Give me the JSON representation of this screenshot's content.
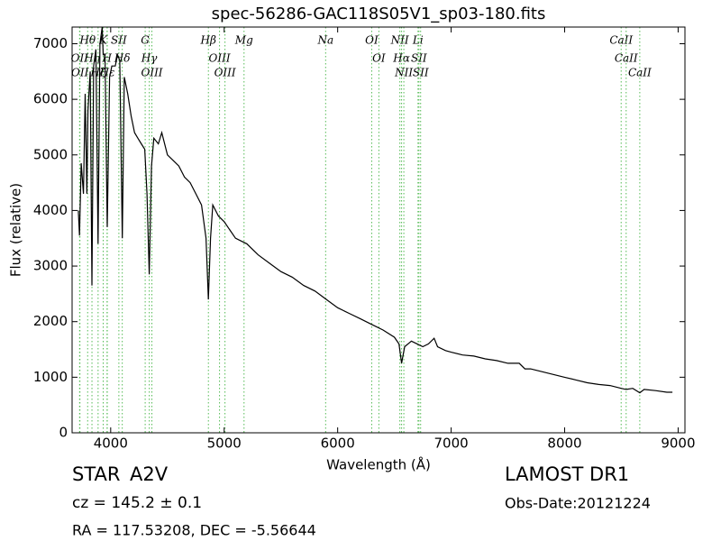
{
  "chart_data": {
    "type": "line",
    "title": "spec-56286-GAC118S05V1_sp03-180.fits",
    "x_label": "Wavelength (Å)",
    "y_label": "Flux (relative)",
    "xlim": [
      3660,
      9060
    ],
    "ylim": [
      0,
      7300
    ],
    "xticks": [
      4000,
      5000,
      6000,
      7000,
      8000,
      9000
    ],
    "yticks": [
      0,
      1000,
      2000,
      3000,
      4000,
      5000,
      6000,
      7000
    ],
    "color": "#000000",
    "line_color": "#55bb55",
    "x": [
      3715,
      3725,
      3740,
      3760,
      3775,
      3790,
      3800,
      3820,
      3835,
      3850,
      3870,
      3889,
      3905,
      3925,
      3934,
      3950,
      3970,
      3990,
      4010,
      4040,
      4060,
      4080,
      4102,
      4120,
      4150,
      4180,
      4210,
      4240,
      4270,
      4300,
      4320,
      4340,
      4360,
      4380,
      4420,
      4450,
      4500,
      4550,
      4600,
      4650,
      4700,
      4750,
      4800,
      4840,
      4861,
      4880,
      4900,
      4950,
      5000,
      5050,
      5100,
      5150,
      5200,
      5300,
      5400,
      5500,
      5600,
      5700,
      5800,
      5900,
      6000,
      6100,
      6200,
      6300,
      6400,
      6500,
      6540,
      6563,
      6590,
      6650,
      6700,
      6750,
      6800,
      6850,
      6880,
      6950,
      7000,
      7100,
      7200,
      7300,
      7400,
      7500,
      7600,
      7650,
      7700,
      7800,
      7900,
      8000,
      8100,
      8200,
      8300,
      8400,
      8498,
      8542,
      8600,
      8662,
      8700,
      8800,
      8900,
      8950
    ],
    "values": [
      4000,
      3550,
      4850,
      4300,
      6100,
      4300,
      5800,
      6500,
      2650,
      6600,
      6900,
      3400,
      7000,
      7300,
      6800,
      6800,
      3700,
      6400,
      6600,
      6600,
      6800,
      6700,
      3500,
      6400,
      6100,
      5700,
      5400,
      5300,
      5200,
      5100,
      4300,
      2850,
      4800,
      5300,
      5200,
      5400,
      5000,
      4900,
      4800,
      4600,
      4500,
      4300,
      4100,
      3500,
      2400,
      3500,
      4100,
      3900,
      3800,
      3650,
      3500,
      3450,
      3400,
      3200,
      3050,
      2900,
      2800,
      2650,
      2550,
      2400,
      2250,
      2150,
      2050,
      1950,
      1850,
      1720,
      1600,
      1250,
      1550,
      1650,
      1600,
      1550,
      1600,
      1700,
      1550,
      1480,
      1450,
      1400,
      1380,
      1330,
      1300,
      1250,
      1250,
      1150,
      1150,
      1100,
      1050,
      1000,
      950,
      900,
      870,
      850,
      800,
      780,
      800,
      720,
      780,
      760,
      730,
      730
    ],
    "lines": [
      {
        "label": "Hθ",
        "wavelength": 3797
      },
      {
        "label": "OII",
        "wavelength": 3726
      },
      {
        "label": "OII",
        "wavelength": 3729
      },
      {
        "label": "Hη",
        "wavelength": 3835
      },
      {
        "label": "Hζ",
        "wavelength": 3889
      },
      {
        "label": "K",
        "wavelength": 3934
      },
      {
        "label": "H",
        "wavelength": 3968
      },
      {
        "label": "Hε",
        "wavelength": 3970
      },
      {
        "label": "SII",
        "wavelength": 4072
      },
      {
        "label": "Hδ",
        "wavelength": 4102
      },
      {
        "label": "G",
        "wavelength": 4304
      },
      {
        "label": "Hγ",
        "wavelength": 4340
      },
      {
        "label": "OIII",
        "wavelength": 4363
      },
      {
        "label": "Hβ",
        "wavelength": 4861
      },
      {
        "label": "OIII",
        "wavelength": 4959
      },
      {
        "label": "OIII",
        "wavelength": 5007
      },
      {
        "label": "Mg",
        "wavelength": 5175
      },
      {
        "label": "Na",
        "wavelength": 5894
      },
      {
        "label": "OI",
        "wavelength": 6300
      },
      {
        "label": "OI",
        "wavelength": 6363
      },
      {
        "label": "NII",
        "wavelength": 6548
      },
      {
        "label": "Hα",
        "wavelength": 6563
      },
      {
        "label": "NII",
        "wavelength": 6583
      },
      {
        "label": "Li",
        "wavelength": 6708
      },
      {
        "label": "SII",
        "wavelength": 6716
      },
      {
        "label": "SII",
        "wavelength": 6731
      },
      {
        "label": "CaII",
        "wavelength": 8498
      },
      {
        "label": "CaII",
        "wavelength": 8542
      },
      {
        "label": "CaII",
        "wavelength": 8662
      }
    ],
    "object_class": "STAR",
    "subclass": "A2V",
    "redshift_text": "cz = 145.2 ± 0.1",
    "coords_text": "RA = 117.53208, DEC = -5.56644",
    "survey": "LAMOST DR1",
    "obs_date": "Obs-Date:20121224"
  }
}
